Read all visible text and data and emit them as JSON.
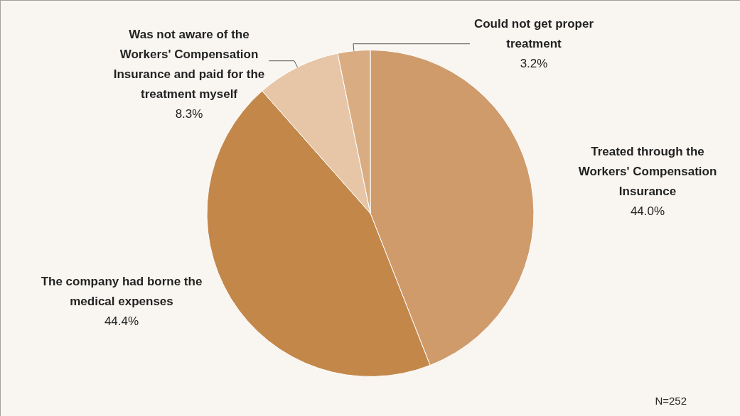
{
  "chart_data": {
    "type": "pie",
    "categories": [
      "Treated through the Workers' Compensation Insurance",
      "The company had borne the medical expenses",
      "Was not aware of the Workers' Compensation Insurance and paid for the treatment myself",
      "Could not get proper treatment"
    ],
    "values": [
      44.0,
      44.4,
      8.3,
      3.2
    ],
    "value_labels": [
      "44.0%",
      "44.4%",
      "8.3%",
      "3.2%"
    ],
    "colors": [
      "#cf9b6b",
      "#c4874a",
      "#e6c6a6",
      "#d9ac82"
    ],
    "legend": false,
    "annotations": [
      "N=252"
    ]
  }
}
